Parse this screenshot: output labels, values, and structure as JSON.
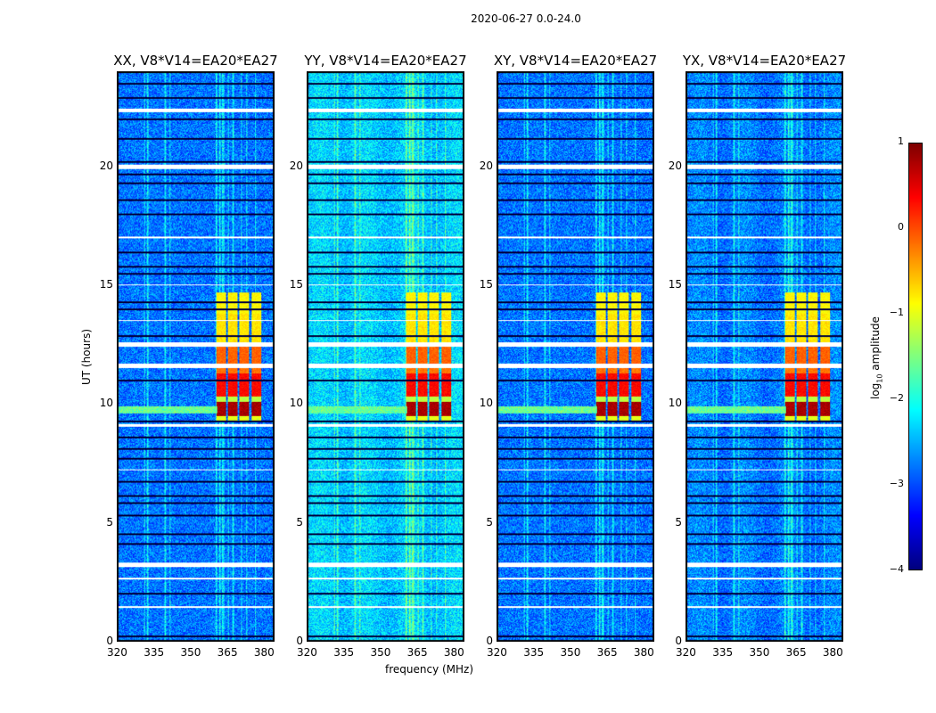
{
  "chart_data": {
    "type": "heatmap",
    "title": "2020-06-27 0.0-24.0",
    "xlabel": "frequency (MHz)",
    "ylabel": "UT (hours)",
    "xlim": [
      320,
      384.4
    ],
    "ylim": [
      0,
      24
    ],
    "xticks": [
      320,
      335,
      350,
      365,
      380
    ],
    "yticks": [
      0,
      5,
      10,
      15,
      20
    ],
    "panels": [
      {
        "title": "XX, V8*V14=EA20*EA27",
        "background_log_amp": -2.8
      },
      {
        "title": "YY, V8*V14=EA20*EA27",
        "background_log_amp": -2.35
      },
      {
        "title": "XY, V8*V14=EA20*EA27",
        "background_log_amp": -2.8
      },
      {
        "title": "YX, V8*V14=EA20*EA27",
        "background_log_amp": -2.75
      }
    ],
    "rfi_channels_mhz": [
      [
        360.7,
        364.6
      ],
      [
        365.4,
        369.4
      ],
      [
        370.3,
        374.3
      ],
      [
        375.2,
        379.3
      ]
    ],
    "rfi_time_segments": [
      {
        "t": [
          9.3,
          9.5
        ],
        "log_amp": -1.0
      },
      {
        "t": [
          9.5,
          10.1
        ],
        "log_amp": 0.8
      },
      {
        "t": [
          10.1,
          10.3
        ],
        "log_amp": -1.2
      },
      {
        "t": [
          10.3,
          11.3
        ],
        "log_amp": 0.35
      },
      {
        "t": [
          11.3,
          11.5
        ],
        "log_amp": -0.2
      },
      {
        "t": [
          11.7,
          12.4
        ],
        "log_amp": -0.1
      },
      {
        "t": [
          12.6,
          13.8
        ],
        "log_amp": -0.75
      },
      {
        "t": [
          13.8,
          14.7
        ],
        "log_amp": -0.85
      }
    ],
    "flagged_gaps_hours": [
      [
        3.1,
        3.3
      ],
      [
        11.5,
        11.7
      ],
      [
        12.4,
        12.6
      ],
      [
        19.9,
        20.1
      ],
      [
        22.3,
        22.45
      ],
      [
        9.05,
        9.15
      ],
      [
        7.2,
        7.25
      ],
      [
        2.6,
        2.65
      ],
      [
        1.4,
        1.45
      ],
      [
        17.0,
        17.05
      ],
      [
        15.0,
        15.05
      ],
      [
        13.5,
        13.55
      ]
    ],
    "dark_lines_hours": [
      0.2,
      2.0,
      4.1,
      4.5,
      5.3,
      5.8,
      6.1,
      6.7,
      7.7,
      8.1,
      8.6,
      9.25,
      11.0,
      12.85,
      14.0,
      14.3,
      15.5,
      15.8,
      16.4,
      18.0,
      18.6,
      19.3,
      19.7,
      20.2,
      21.2,
      22.0,
      22.9,
      23.5
    ],
    "colorbar": {
      "label": "log10 amplitude",
      "label_main": "log",
      "label_sub": "10",
      "label_rest": " amplitude",
      "range": [
        -4,
        1
      ],
      "ticks": [
        "1",
        "0",
        "−1",
        "−2",
        "−3",
        "−4"
      ],
      "tick_values": [
        1,
        0,
        -1,
        -2,
        -3,
        -4
      ],
      "colormap": "jet"
    }
  }
}
